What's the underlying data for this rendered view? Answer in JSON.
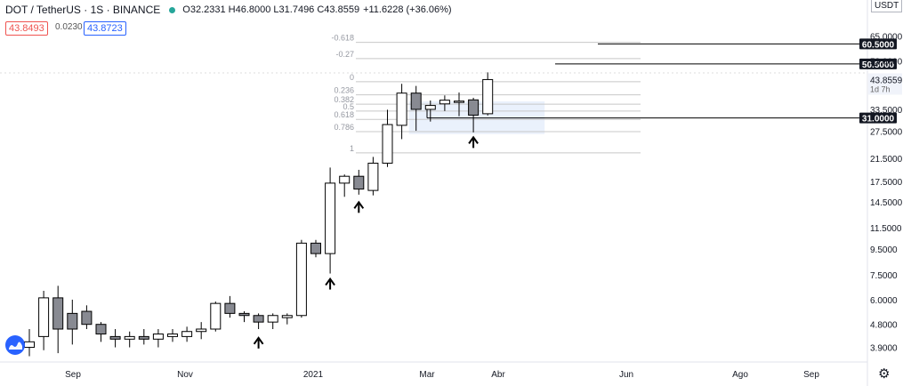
{
  "header": {
    "symbol": "DOT / TetherUS · 1S · BINANCE",
    "ohlc": "O32.2331 H46.8000 L31.7496 C43.8559",
    "change": "+11.6228 (+36.06%)",
    "bid": "43.8493",
    "spread": "0.0230",
    "ask": "43.8723"
  },
  "price_scale": {
    "currency": "USDT"
  },
  "colors": {
    "bull": "#ffffff",
    "bear": "#888a92",
    "candle_outline": "#000000",
    "zone": "#dce8fa",
    "bid": "#ef5350",
    "ask": "#2962ff"
  },
  "icons": {
    "logo": "tradingview-logo-icon",
    "settings": "gear-icon"
  },
  "chart_data": {
    "type": "candlestick",
    "title": "",
    "timeframe": "1W",
    "y_scale": "log",
    "ylim": [
      3.5,
      90
    ],
    "y_ticks": [
      65,
      52,
      43.8559,
      33.5,
      27.5,
      21.5,
      17.5,
      14.5,
      11.5,
      9.5,
      7.5,
      6.0,
      4.8,
      3.9
    ],
    "y_tick_labels": [
      "65.0000",
      "52.0000",
      "43.8559",
      "33.5000",
      "27.5000",
      "21.5000",
      "17.5000",
      "14.5000",
      "11.5000",
      "9.5000",
      "7.5000",
      "6.0000",
      "4.8000",
      "3.9000"
    ],
    "x_labels": [
      "Sep",
      "Nov",
      "2021",
      "Mar",
      "Abr",
      "Jun",
      "Ago",
      "Sep"
    ],
    "candles": [
      {
        "o": 3.9,
        "h": 4.6,
        "l": 3.6,
        "c": 4.1
      },
      {
        "o": 4.3,
        "h": 6.5,
        "l": 3.8,
        "c": 6.1
      },
      {
        "o": 6.1,
        "h": 6.8,
        "l": 3.7,
        "c": 4.6
      },
      {
        "o": 5.3,
        "h": 6.0,
        "l": 4.0,
        "c": 4.6
      },
      {
        "o": 5.4,
        "h": 5.7,
        "l": 4.6,
        "c": 4.8
      },
      {
        "o": 4.8,
        "h": 4.9,
        "l": 4.1,
        "c": 4.4
      },
      {
        "o": 4.3,
        "h": 4.6,
        "l": 3.9,
        "c": 4.2
      },
      {
        "o": 4.2,
        "h": 4.5,
        "l": 3.9,
        "c": 4.3
      },
      {
        "o": 4.3,
        "h": 4.6,
        "l": 4.0,
        "c": 4.2
      },
      {
        "o": 4.2,
        "h": 4.6,
        "l": 3.9,
        "c": 4.4
      },
      {
        "o": 4.3,
        "h": 4.6,
        "l": 4.1,
        "c": 4.4
      },
      {
        "o": 4.3,
        "h": 4.7,
        "l": 4.1,
        "c": 4.5
      },
      {
        "o": 4.5,
        "h": 4.9,
        "l": 4.2,
        "c": 4.6
      },
      {
        "o": 4.6,
        "h": 5.9,
        "l": 4.5,
        "c": 5.8
      },
      {
        "o": 5.8,
        "h": 6.2,
        "l": 5.1,
        "c": 5.3
      },
      {
        "o": 5.3,
        "h": 5.4,
        "l": 4.9,
        "c": 5.2
      },
      {
        "o": 5.2,
        "h": 5.3,
        "l": 4.6,
        "c": 4.9
      },
      {
        "o": 4.9,
        "h": 5.3,
        "l": 4.6,
        "c": 5.2
      },
      {
        "o": 5.1,
        "h": 5.3,
        "l": 4.8,
        "c": 5.2
      },
      {
        "o": 5.2,
        "h": 10.3,
        "l": 5.1,
        "c": 10.0
      },
      {
        "o": 10.0,
        "h": 10.3,
        "l": 8.8,
        "c": 9.1
      },
      {
        "o": 9.1,
        "h": 19.8,
        "l": 7.6,
        "c": 17.2
      },
      {
        "o": 17.2,
        "h": 18.6,
        "l": 15.2,
        "c": 18.3
      },
      {
        "o": 18.3,
        "h": 19.4,
        "l": 15.5,
        "c": 16.3
      },
      {
        "o": 16.1,
        "h": 21.8,
        "l": 15.4,
        "c": 20.6
      },
      {
        "o": 20.6,
        "h": 33.4,
        "l": 19.9,
        "c": 29.2
      },
      {
        "o": 29.0,
        "h": 42.2,
        "l": 25.6,
        "c": 38.8
      },
      {
        "o": 38.8,
        "h": 41.4,
        "l": 27.6,
        "c": 33.5
      },
      {
        "o": 33.5,
        "h": 36.3,
        "l": 30.0,
        "c": 34.7
      },
      {
        "o": 35.2,
        "h": 38.0,
        "l": 33.0,
        "c": 36.4
      },
      {
        "o": 35.9,
        "h": 39.0,
        "l": 31.5,
        "c": 36.1
      },
      {
        "o": 36.5,
        "h": 37.2,
        "l": 27.2,
        "c": 31.8
      },
      {
        "o": 32.2,
        "h": 46.8,
        "l": 31.7,
        "c": 43.8559
      }
    ],
    "fibonacci": {
      "levels": [
        "-0.618",
        "-0.27",
        "0",
        "0.236",
        "0.382",
        "0.5",
        "0.618",
        "0.786",
        "1"
      ],
      "prices": [
        61.4,
        53.0,
        43.0,
        38.2,
        35.1,
        33.0,
        30.6,
        27.4,
        22.6
      ]
    },
    "horizontal_lines": [
      {
        "value": 60.5,
        "label": "60.5000"
      },
      {
        "value": 50.5,
        "label": "50.5000"
      },
      {
        "value": 31.0,
        "label": "31.0000"
      }
    ],
    "countdown": "1d 7h",
    "support_zone": {
      "low": 26.8,
      "high": 36.0
    },
    "arrow_markers": [
      {
        "index": 16,
        "price": 4.05
      },
      {
        "index": 21,
        "price": 6.9
      },
      {
        "index": 23,
        "price": 13.8
      },
      {
        "index": 31,
        "price": 24.8
      }
    ]
  }
}
